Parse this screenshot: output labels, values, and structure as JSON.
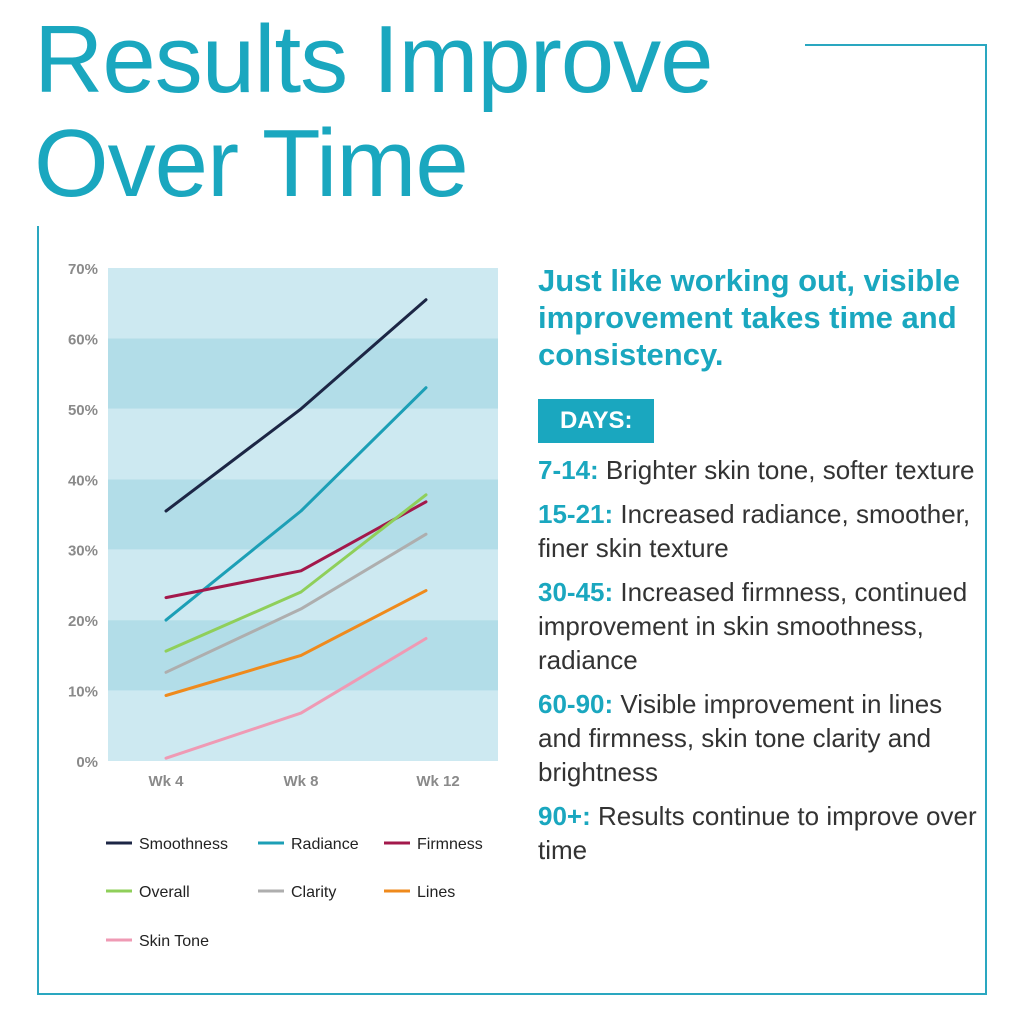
{
  "title": [
    "Results Improve",
    "Over Time"
  ],
  "colors": {
    "accent": "#1aa7bf",
    "band_light": "#cde9f1",
    "band_dark": "#b2dde8",
    "frame": "#2aa7c0"
  },
  "chart_data": {
    "type": "line",
    "categories": [
      "Wk 4",
      "Wk 8",
      "Wk 12"
    ],
    "ylim": [
      0,
      70
    ],
    "yticks": [
      0,
      10,
      20,
      30,
      40,
      50,
      60,
      70
    ],
    "ytick_labels": [
      "0%",
      "10%",
      "20%",
      "30%",
      "40%",
      "50%",
      "60%",
      "70%"
    ],
    "grid": "alternating horizontal bands",
    "legend_position": "bottom",
    "series": [
      {
        "name": "Smoothness",
        "color": "#1c2645",
        "values": [
          35.5,
          50,
          65.5
        ]
      },
      {
        "name": "Radiance",
        "color": "#1c9fb6",
        "values": [
          20,
          35.5,
          53
        ]
      },
      {
        "name": "Firmness",
        "color": "#a3184b",
        "values": [
          23.2,
          27,
          36.8
        ]
      },
      {
        "name": "Overall",
        "color": "#8fcf5a",
        "values": [
          15.6,
          24,
          37.8
        ]
      },
      {
        "name": "Clarity",
        "color": "#aeaeae",
        "values": [
          12.6,
          21.6,
          32.2
        ]
      },
      {
        "name": "Lines",
        "color": "#ef8a1c",
        "values": [
          9.3,
          15,
          24.2
        ]
      },
      {
        "name": "Skin Tone",
        "color": "#ef9ab4",
        "values": [
          0.4,
          6.8,
          17.4
        ]
      }
    ]
  },
  "headline": "Just like working out, visible improvement takes time and consistency.",
  "days_label": "DAYS:",
  "milestones": [
    {
      "range": "7-14:",
      "text": " Brighter skin tone, softer texture"
    },
    {
      "range": "15-21:",
      "text": " Increased radiance, smoother, finer skin texture"
    },
    {
      "range": "30-45:",
      "text": " Increased firmness, continued improvement in skin smoothness, radiance"
    },
    {
      "range": "60-90:",
      "text": " Visible improvement in lines and firmness, skin tone clarity and brightness"
    },
    {
      "range": "90+:",
      "text": " Results continue to improve over time"
    }
  ]
}
